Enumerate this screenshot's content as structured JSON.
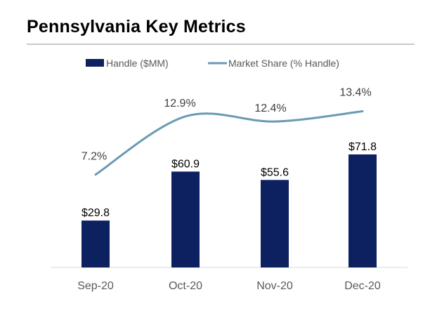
{
  "title": "Pennsylvania Key Metrics",
  "chart_data": {
    "type": "bar",
    "categories": [
      "Sep-20",
      "Oct-20",
      "Nov-20",
      "Dec-20"
    ],
    "series": [
      {
        "name": "Handle ($MM)",
        "type": "bar",
        "values": [
          29.8,
          60.9,
          55.6,
          71.8
        ],
        "labels": [
          "$29.8",
          "$60.9",
          "$55.6",
          "$71.8"
        ],
        "color": "#0d2160"
      },
      {
        "name": "Market Share (% Handle)",
        "type": "line",
        "values": [
          7.2,
          12.9,
          12.4,
          13.4
        ],
        "labels": [
          "7.2%",
          "12.9%",
          "12.4%",
          "13.4%"
        ],
        "color": "#6a9ab5"
      }
    ],
    "legend_position": "top",
    "grid": false
  }
}
